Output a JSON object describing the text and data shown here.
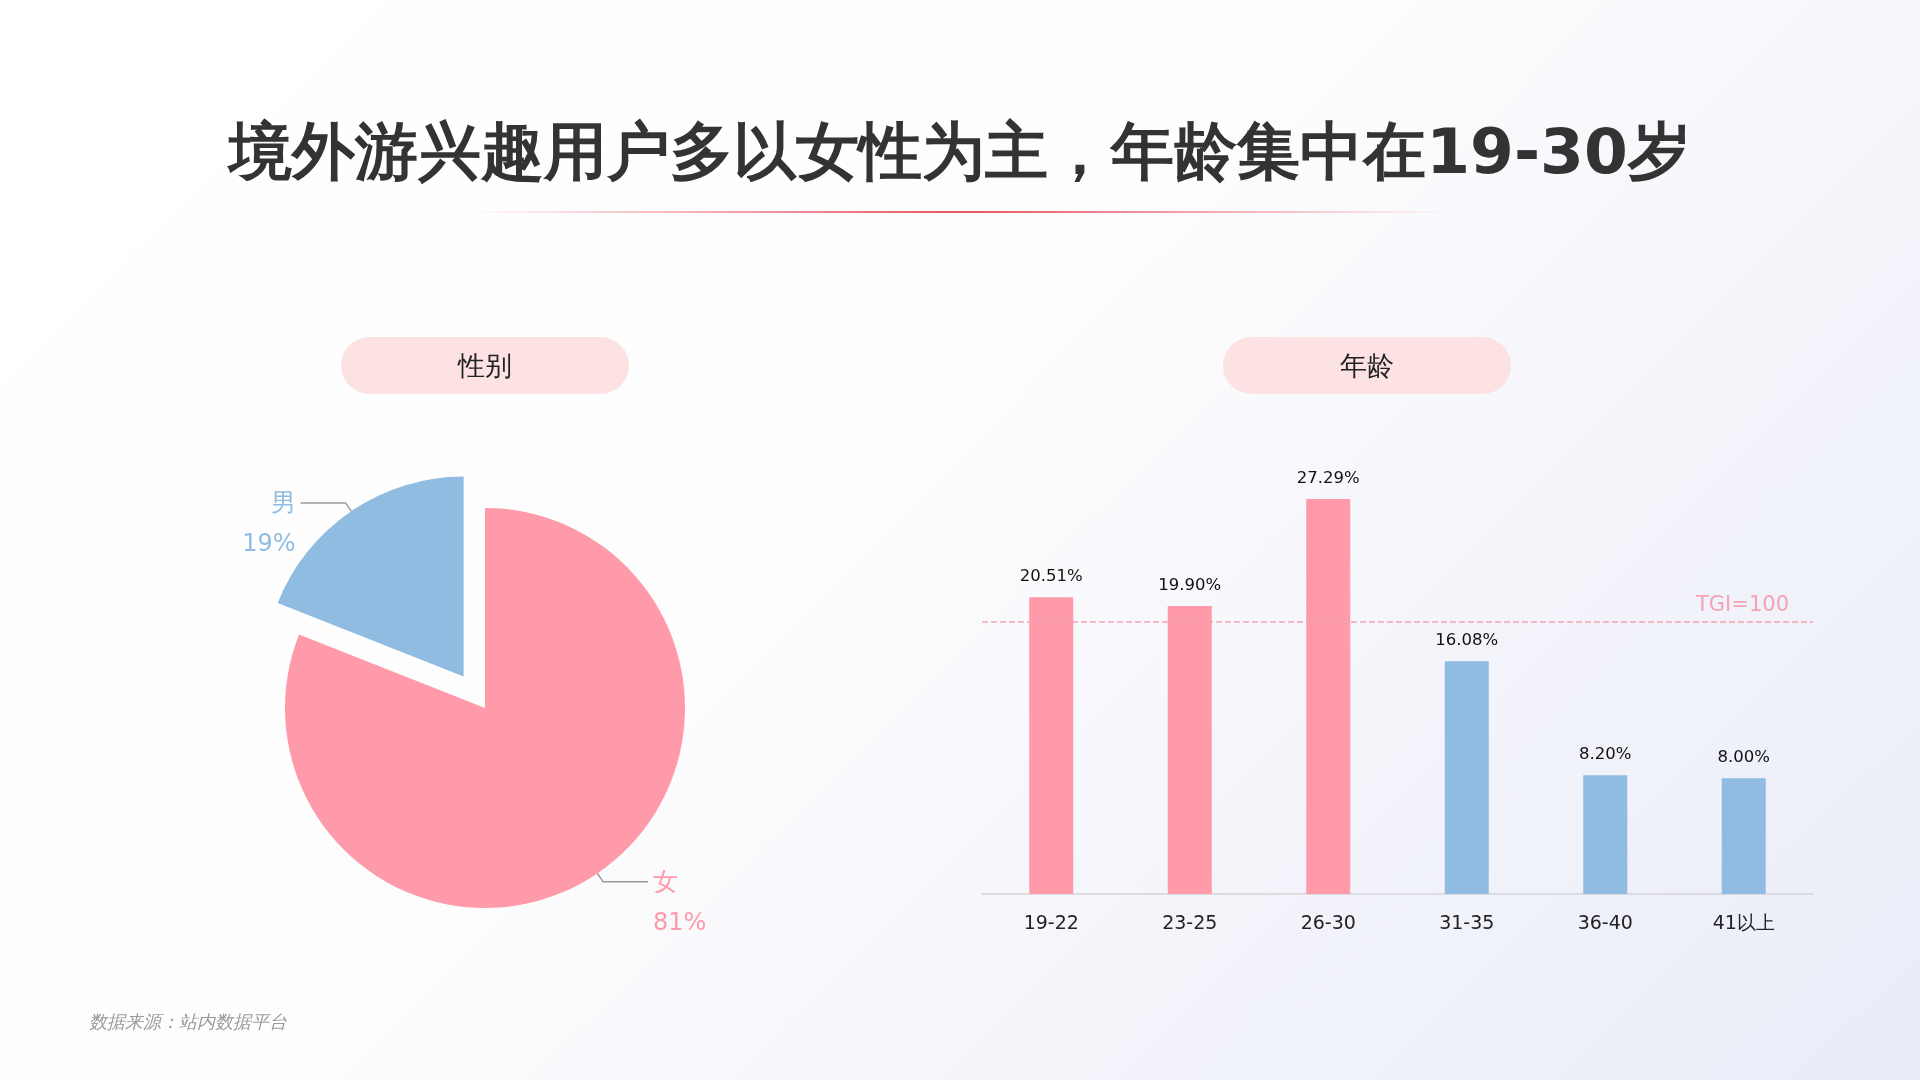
{
  "chart_data": [
    {
      "type": "pie",
      "title": "境外游兴趣用户多以女性为主，年龄集中在19-30岁",
      "subtitle": "性别",
      "categories": [
        "男",
        "女"
      ],
      "values": [
        19,
        81
      ],
      "value_labels": [
        "19%",
        "81%"
      ],
      "colors": [
        "#8fbce0",
        "#fe9aaa"
      ],
      "annotations": [
        "数据来源：站内数据平台"
      ]
    },
    {
      "type": "bar",
      "subtitle": "年龄",
      "categories": [
        "19-22",
        "23-25",
        "26-30",
        "31-35",
        "36-40",
        "41以上"
      ],
      "values": [
        20.51,
        19.9,
        27.29,
        16.08,
        8.2,
        8.0
      ],
      "value_labels": [
        "20.51%",
        "19.90%",
        "27.29%",
        "16.08%",
        "8.20%",
        "8.00%"
      ],
      "colors": [
        "#fe9aaa",
        "#fe9aaa",
        "#fe9aaa",
        "#8fbce0",
        "#8fbce0",
        "#8fbce0"
      ],
      "ref_lines": [
        {
          "axis": "y",
          "value": 18.8,
          "color": "#f5a3b4",
          "line_style": "dashed"
        }
      ],
      "annotations": [
        {
          "text": "TGI=100",
          "y": 18.8
        }
      ]
    }
  ]
}
